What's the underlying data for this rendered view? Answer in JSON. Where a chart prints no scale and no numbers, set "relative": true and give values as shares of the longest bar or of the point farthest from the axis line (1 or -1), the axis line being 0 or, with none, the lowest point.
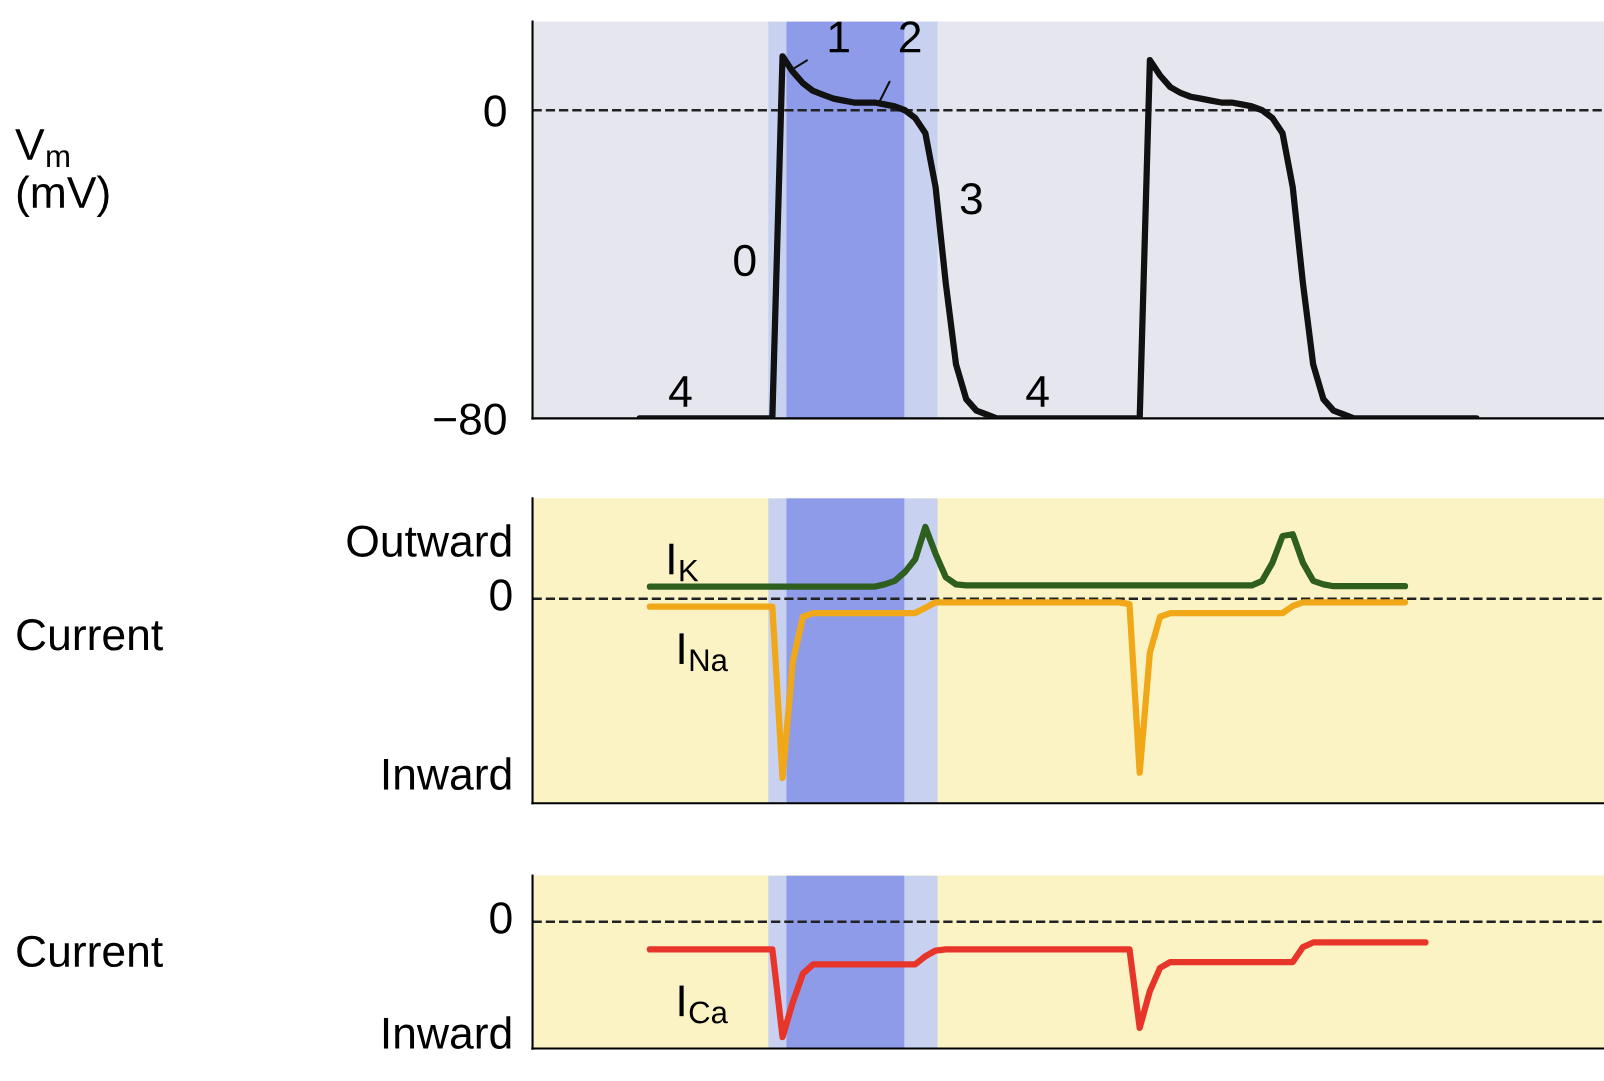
{
  "chart_data": [
    {
      "type": "line",
      "ylabel": "V$_{m}$\n(mV)",
      "categories": [
        null,
        null,
        null,
        null,
        null,
        null,
        null,
        null,
        null,
        null,
        null,
        null,
        null,
        null,
        null,
        null,
        null,
        null,
        null,
        null,
        null,
        null,
        null,
        null,
        null,
        null,
        null,
        null,
        null,
        null,
        null,
        null,
        null,
        null,
        null,
        null,
        null,
        null,
        null,
        null,
        null,
        null,
        null,
        null,
        null,
        null,
        null,
        null,
        null,
        null,
        null,
        null,
        null,
        null,
        null,
        null,
        null,
        null,
        null,
        null,
        null,
        null,
        null,
        null,
        null,
        null,
        null,
        null,
        null,
        null,
        null,
        null,
        null,
        null,
        null,
        null,
        null,
        null,
        null,
        null,
        null,
        null,
        null,
        null,
        null,
        null,
        null,
        null,
        null,
        null,
        null,
        null,
        null,
        null,
        null,
        null,
        null,
        null,
        null,
        null,
        null,
        null,
        null,
        null,
        null
      ],
      "series": [
        {
          "color": "#111111",
          "values": [
            null,
            null,
            null,
            null,
            null,
            null,
            null,
            null,
            null,
            null,
            -80,
            -80,
            -80,
            -80,
            -80,
            -80,
            -80,
            -80,
            -80,
            -80,
            -80,
            -80,
            -80,
            -80,
            14,
            10,
            7,
            5,
            4,
            3,
            2.5,
            2,
            2,
            2,
            1.5,
            1,
            0,
            -2,
            -6,
            -20,
            -45,
            -66,
            -75,
            -78,
            -79,
            -80,
            -80,
            -80,
            -80,
            -80,
            -80,
            -80,
            -80,
            -80,
            -80,
            -80,
            -80,
            -80,
            -80,
            -80,
            13,
            9,
            6,
            4.5,
            3.5,
            3,
            2.5,
            2,
            2,
            1.5,
            1,
            0,
            -2,
            -6,
            -20,
            -45,
            -66,
            -75,
            -78,
            -79,
            -80,
            -80,
            -80,
            -80,
            -80,
            -80,
            -80,
            -80,
            -80,
            -80,
            -80,
            -80,
            -80,
            null,
            null,
            null,
            null,
            null,
            null,
            null,
            null,
            null,
            null,
            null,
            null
          ]
        }
      ],
      "ylim": [
        -80,
        23
      ],
      "yticks": [
        {
          "value": -80,
          "label": "−80"
        },
        0
      ],
      "tick_labels": "y",
      "ref_lines": [
        {
          "axis": "y",
          "value": 0,
          "color": "#222222",
          "line_style": "dashed"
        }
      ],
      "annotations": [
        "4",
        "0",
        "1",
        "2",
        "3",
        "4"
      ]
    },
    {
      "type": "line",
      "relative": true,
      "ylabel": "Current",
      "categories": [
        null,
        null,
        null,
        null,
        null,
        null,
        null,
        null,
        null,
        null,
        null,
        null,
        null,
        null,
        null,
        null,
        null,
        null,
        null,
        null,
        null,
        null,
        null,
        null,
        null,
        null,
        null,
        null,
        null,
        null,
        null,
        null,
        null,
        null,
        null,
        null,
        null,
        null,
        null,
        null,
        null,
        null,
        null,
        null,
        null,
        null,
        null,
        null,
        null,
        null,
        null,
        null,
        null,
        null,
        null,
        null,
        null,
        null,
        null,
        null,
        null,
        null,
        null,
        null,
        null,
        null,
        null,
        null,
        null,
        null,
        null,
        null,
        null,
        null,
        null,
        null,
        null,
        null,
        null,
        null,
        null,
        null,
        null,
        null,
        null,
        null,
        null,
        null,
        null,
        null,
        null,
        null,
        null,
        null,
        null,
        null,
        null,
        null,
        null,
        null,
        null,
        null,
        null,
        null,
        null
      ],
      "series": [
        {
          "name": "I$_{K}$",
          "color": "#2f5f1f",
          "values": [
            null,
            null,
            null,
            null,
            null,
            null,
            null,
            null,
            null,
            null,
            null,
            0.067,
            0.067,
            0.067,
            0.067,
            0.067,
            0.067,
            0.067,
            0.067,
            0.067,
            0.067,
            0.067,
            0.067,
            0.067,
            0.067,
            0.067,
            0.067,
            0.067,
            0.067,
            0.067,
            0.067,
            0.067,
            0.067,
            0.067,
            0.08,
            0.1,
            0.15,
            0.22,
            0.4,
            0.25,
            0.12,
            0.08,
            0.075,
            0.075,
            0.075,
            0.075,
            0.075,
            0.075,
            0.075,
            0.075,
            0.075,
            0.075,
            0.075,
            0.075,
            0.075,
            0.075,
            0.075,
            0.075,
            0.075,
            0.075,
            0.075,
            0.075,
            0.075,
            0.075,
            0.075,
            0.075,
            0.075,
            0.075,
            0.075,
            0.075,
            0.075,
            0.1,
            0.2,
            0.35,
            0.36,
            0.2,
            0.1,
            0.08,
            0.07,
            0.07,
            0.07,
            0.07,
            0.07,
            0.07,
            0.07,
            0.07,
            null,
            null,
            null,
            null,
            null,
            null,
            null,
            null,
            null,
            null,
            null,
            null,
            null,
            null,
            null,
            null,
            null,
            null,
            null
          ]
        },
        {
          "name": "I$_{Na}$",
          "color": "#f0a818",
          "values": [
            null,
            null,
            null,
            null,
            null,
            null,
            null,
            null,
            null,
            null,
            null,
            -0.044,
            -0.044,
            -0.044,
            -0.044,
            -0.044,
            -0.044,
            -0.044,
            -0.044,
            -0.044,
            -0.044,
            -0.044,
            -0.044,
            -0.044,
            -1,
            -0.35,
            -0.1,
            -0.08,
            -0.08,
            -0.08,
            -0.08,
            -0.08,
            -0.08,
            -0.08,
            -0.08,
            -0.08,
            -0.08,
            -0.08,
            -0.05,
            -0.02,
            -0.02,
            -0.02,
            -0.02,
            -0.02,
            -0.02,
            -0.02,
            -0.02,
            -0.02,
            -0.02,
            -0.02,
            -0.02,
            -0.02,
            -0.02,
            -0.02,
            -0.02,
            -0.02,
            -0.02,
            -0.02,
            -0.03,
            -0.97,
            -0.3,
            -0.1,
            -0.08,
            -0.08,
            -0.08,
            -0.08,
            -0.08,
            -0.08,
            -0.08,
            -0.08,
            -0.08,
            -0.08,
            -0.08,
            -0.08,
            -0.04,
            -0.02,
            -0.02,
            -0.02,
            -0.02,
            -0.02,
            -0.02,
            -0.02,
            -0.02,
            -0.02,
            -0.02,
            -0.02,
            null,
            null,
            null,
            null,
            null,
            null,
            null,
            null,
            null,
            null,
            null,
            null,
            null,
            null,
            null,
            null,
            null,
            null,
            null
          ]
        }
      ],
      "tick_labels": false,
      "ref_lines": [
        {
          "axis": "y",
          "value": 0,
          "color": "#222222",
          "line_style": "dashed"
        }
      ],
      "annotations": [
        "Outward",
        "0",
        "Inward"
      ]
    },
    {
      "type": "line",
      "relative": true,
      "ylabel": "Current",
      "categories": [
        null,
        null,
        null,
        null,
        null,
        null,
        null,
        null,
        null,
        null,
        null,
        null,
        null,
        null,
        null,
        null,
        null,
        null,
        null,
        null,
        null,
        null,
        null,
        null,
        null,
        null,
        null,
        null,
        null,
        null,
        null,
        null,
        null,
        null,
        null,
        null,
        null,
        null,
        null,
        null,
        null,
        null,
        null,
        null,
        null,
        null,
        null,
        null,
        null,
        null,
        null,
        null,
        null,
        null,
        null,
        null,
        null,
        null,
        null,
        null,
        null,
        null,
        null,
        null,
        null,
        null,
        null,
        null,
        null,
        null,
        null,
        null,
        null,
        null,
        null,
        null,
        null,
        null,
        null,
        null,
        null,
        null,
        null,
        null,
        null,
        null,
        null,
        null,
        null,
        null,
        null,
        null,
        null,
        null,
        null,
        null,
        null,
        null,
        null,
        null,
        null,
        null,
        null,
        null,
        null
      ],
      "series": [
        {
          "name": "I$_{Ca}$",
          "color": "#e8352a",
          "values": [
            null,
            null,
            null,
            null,
            null,
            null,
            null,
            null,
            null,
            null,
            null,
            -0.24,
            -0.24,
            -0.24,
            -0.24,
            -0.24,
            -0.24,
            -0.24,
            -0.24,
            -0.24,
            -0.24,
            -0.24,
            -0.24,
            -0.24,
            -1,
            -0.7,
            -0.45,
            -0.37,
            -0.37,
            -0.37,
            -0.37,
            -0.37,
            -0.37,
            -0.37,
            -0.37,
            -0.37,
            -0.37,
            -0.37,
            -0.3,
            -0.25,
            -0.24,
            -0.24,
            -0.24,
            -0.24,
            -0.24,
            -0.24,
            -0.24,
            -0.24,
            -0.24,
            -0.24,
            -0.24,
            -0.24,
            -0.24,
            -0.24,
            -0.24,
            -0.24,
            -0.24,
            -0.24,
            -0.24,
            -0.92,
            -0.6,
            -0.4,
            -0.35,
            -0.35,
            -0.35,
            -0.35,
            -0.35,
            -0.35,
            -0.35,
            -0.35,
            -0.35,
            -0.35,
            -0.35,
            -0.35,
            -0.35,
            -0.22,
            -0.18,
            -0.18,
            -0.18,
            -0.18,
            -0.18,
            -0.18,
            -0.18,
            -0.18,
            -0.18,
            -0.18,
            -0.18,
            -0.18,
            null,
            null,
            null,
            null,
            null,
            null,
            null,
            null,
            null,
            null,
            null,
            null,
            null,
            null,
            null,
            null,
            null
          ]
        }
      ],
      "tick_labels": false,
      "ref_lines": [
        {
          "axis": "y",
          "value": 0,
          "color": "#222222",
          "line_style": "dashed"
        }
      ],
      "annotations": [
        "0",
        "Inward"
      ]
    }
  ]
}
